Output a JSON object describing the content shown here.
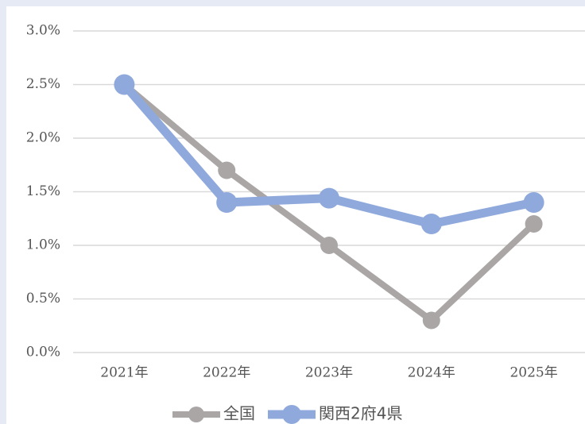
{
  "chart_data": {
    "type": "line",
    "categories": [
      "2021年",
      "2022年",
      "2023年",
      "2024年",
      "2025年"
    ],
    "series": [
      {
        "name": "全国",
        "color": "#aba6a6",
        "values": [
          2.5,
          1.7,
          1.0,
          0.3,
          1.2
        ]
      },
      {
        "name": "関西2府4県",
        "color": "#8fa9dc",
        "values": [
          2.5,
          1.4,
          1.44,
          1.2,
          1.4
        ]
      }
    ],
    "ylim": [
      0,
      3
    ],
    "yticks": [
      {
        "value": 0,
        "label": "0.0%"
      },
      {
        "value": 0.5,
        "label": "0.5%"
      },
      {
        "value": 1,
        "label": "1.0%"
      },
      {
        "value": 1.5,
        "label": "1.5%"
      },
      {
        "value": 2,
        "label": "2.0%"
      },
      {
        "value": 2.5,
        "label": "2.5%"
      },
      {
        "value": 3,
        "label": "3.0%"
      }
    ],
    "grid": true,
    "legend": "bottom"
  }
}
